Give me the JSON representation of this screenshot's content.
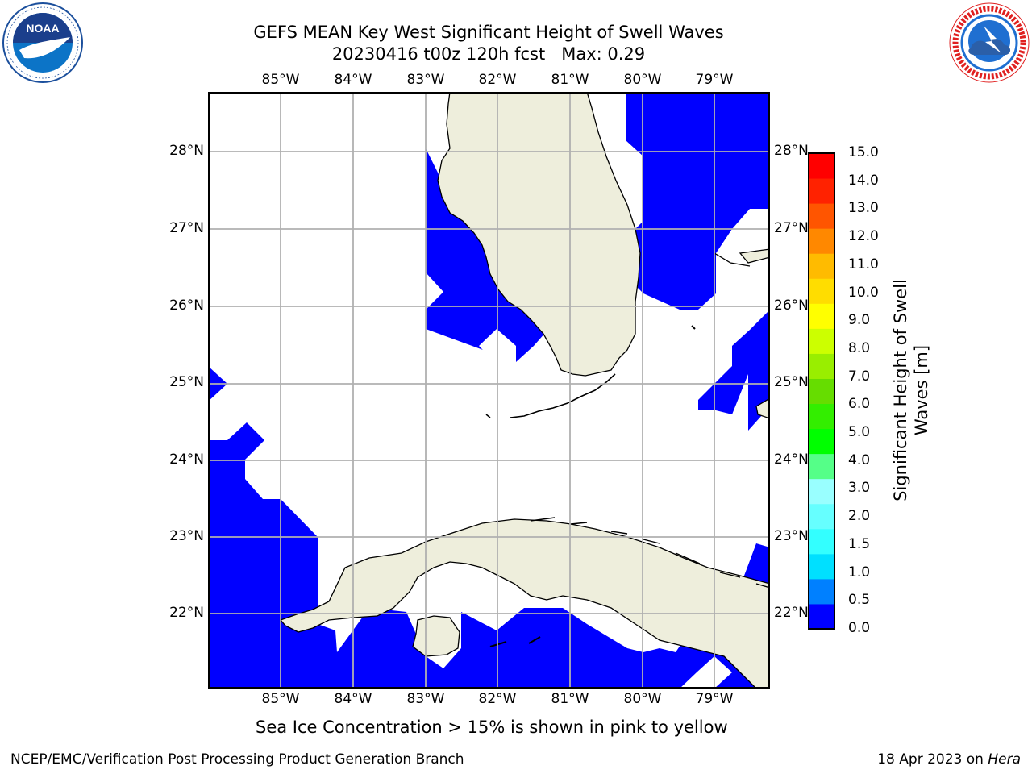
{
  "header": {
    "title_line1": "GEFS MEAN Key West Significant Height of Swell Waves",
    "title_line2": "20230416 t00z 120h fcst   Max: 0.29"
  },
  "logos": {
    "left": {
      "name": "NOAA",
      "text": "NOAA",
      "ring_text": "NATIONAL OCEANIC AND ATMOSPHERIC ADMINISTRATION • U.S. DEPARTMENT OF COMMERCE",
      "colors": {
        "ring": "#1b4f9c",
        "fill": "#0c74c7",
        "white": "#ffffff"
      }
    },
    "right": {
      "name": "National Weather Service",
      "ring_text": "NATIONAL WEATHER SERVICE",
      "colors": {
        "ring": "#e02020",
        "fill": "#1f6fd1"
      }
    }
  },
  "map": {
    "longitude_labels": [
      "85°W",
      "84°W",
      "83°W",
      "82°W",
      "81°W",
      "80°W",
      "79°W"
    ],
    "latitude_labels": [
      "28°N",
      "27°N",
      "26°N",
      "25°N",
      "24°N",
      "23°N",
      "22°N"
    ],
    "colors": {
      "ocean_swell": "#0000ff",
      "land": "#eeeedc",
      "no_data": "#ffffff",
      "grid": "#b0b0b0",
      "coast": "#000000"
    }
  },
  "colorbar": {
    "title": "Significant Height of Swell Waves [m]",
    "tick_labels": [
      "15.0",
      "14.0",
      "13.0",
      "12.0",
      "11.0",
      "10.0",
      "9.0",
      "8.0",
      "7.0",
      "6.0",
      "5.0",
      "4.0",
      "3.0",
      "2.0",
      "1.5",
      "1.0",
      "0.5",
      "0.0"
    ],
    "colors_bottom_to_top": [
      "#0000ff",
      "#0080ff",
      "#00e0ff",
      "#33ffff",
      "#66ffff",
      "#99ffff",
      "#55ff88",
      "#00ff00",
      "#33ee00",
      "#66dd00",
      "#99ee00",
      "#ccff00",
      "#ffff00",
      "#ffdd00",
      "#ffbb00",
      "#ff8800",
      "#ff5500",
      "#ff2200",
      "#ff0000"
    ]
  },
  "caption": "Sea Ice Concentration > 15% is shown in pink to yellow",
  "footer": {
    "left": "NCEP/EMC/Verification Post Processing Product Generation Branch",
    "right_date": "18 Apr 2023 on",
    "right_host": "Hera"
  }
}
